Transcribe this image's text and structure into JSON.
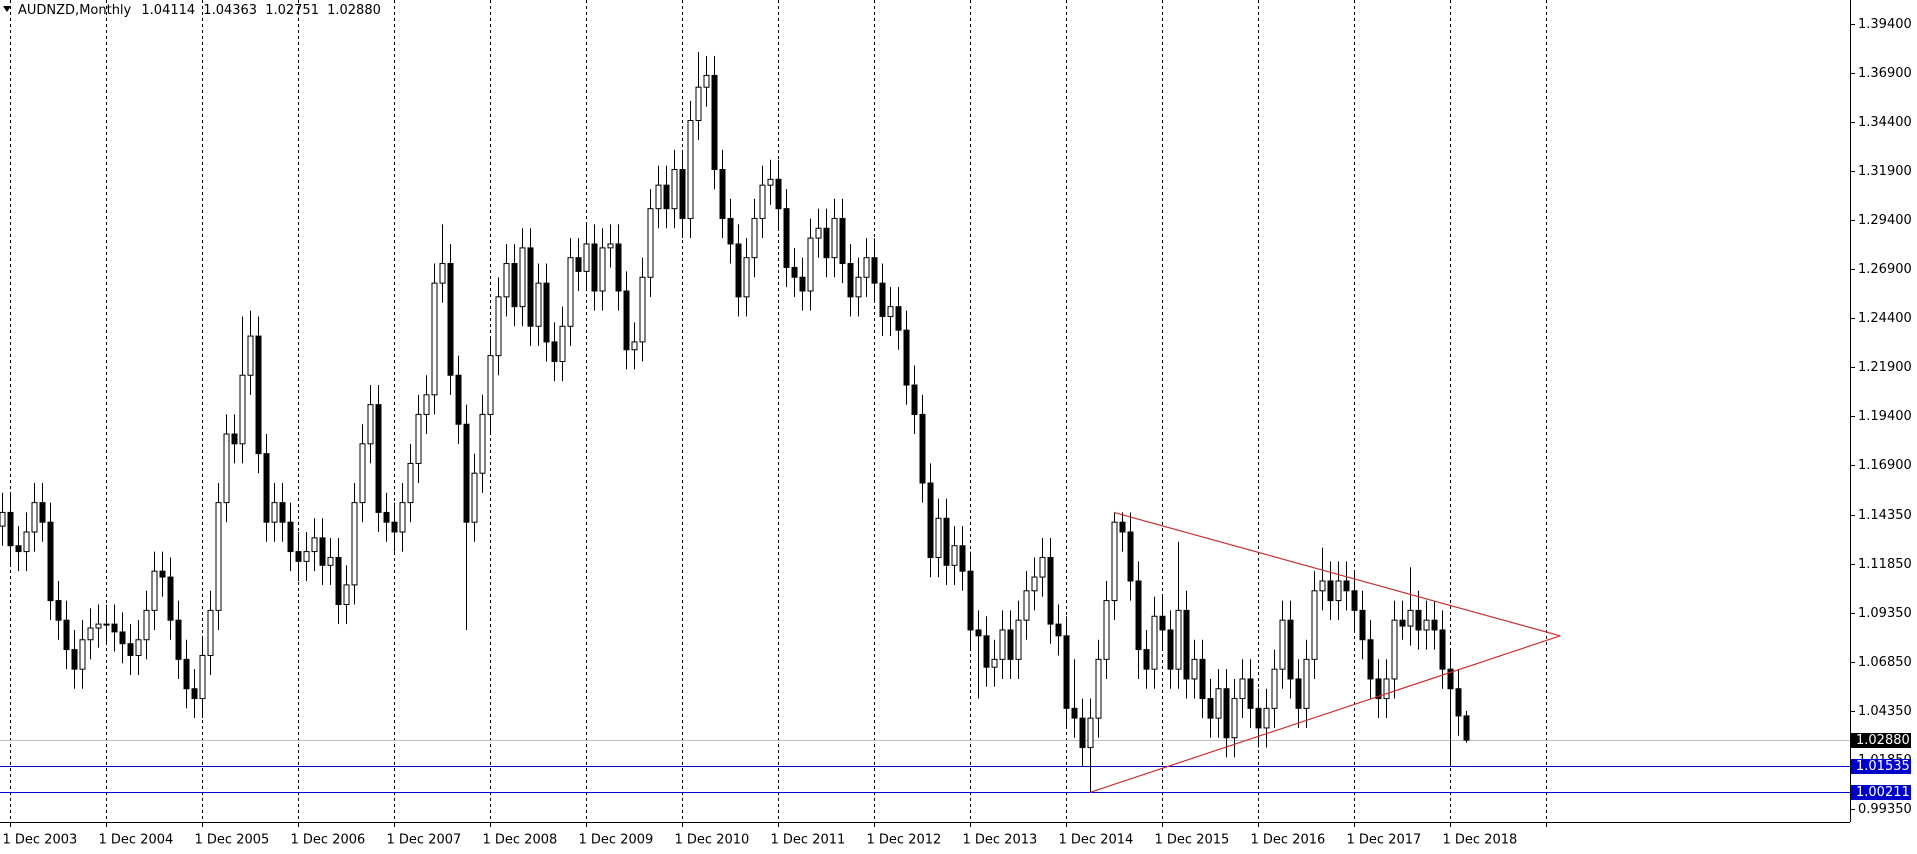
{
  "chart_data": {
    "type": "candlestick",
    "symbol": "AUDNZD,Monthly",
    "ohlc_header": [
      "1.04114",
      "1.04363",
      "1.02751",
      "1.02880"
    ],
    "bull_fill": "#ffffff",
    "bear_fill": "#000000",
    "candle_stroke": "#000000",
    "grid": true,
    "xlim": [
      "2003-10-25",
      "2023-02-01"
    ],
    "xticks": [
      {
        "value": "2003-12-01",
        "label": "1 Dec 2003"
      },
      {
        "value": "2004-12-01",
        "label": "1 Dec 2004"
      },
      {
        "value": "2005-12-01",
        "label": "1 Dec 2005"
      },
      {
        "value": "2006-12-01",
        "label": "1 Dec 2006"
      },
      {
        "value": "2007-12-01",
        "label": "1 Dec 2007"
      },
      {
        "value": "2008-12-01",
        "label": "1 Dec 2008"
      },
      {
        "value": "2009-12-01",
        "label": "1 Dec 2009"
      },
      {
        "value": "2010-12-01",
        "label": "1 Dec 2010"
      },
      {
        "value": "2011-12-01",
        "label": "1 Dec 2011"
      },
      {
        "value": "2012-12-01",
        "label": "1 Dec 2012"
      },
      {
        "value": "2013-12-01",
        "label": "1 Dec 2013"
      },
      {
        "value": "2014-12-01",
        "label": "1 Dec 2014"
      },
      {
        "value": "2015-12-01",
        "label": "1 Dec 2015"
      },
      {
        "value": "2016-12-01",
        "label": "1 Dec 2016"
      },
      {
        "value": "2017-12-01",
        "label": "1 Dec 2017"
      },
      {
        "value": "2018-12-01",
        "label": "1 Dec 2018"
      },
      {
        "value": "2019-12-01",
        "label": null
      }
    ],
    "ylim": [
      0.987,
      1.4065
    ],
    "yticks": [
      {
        "value": 1.394,
        "label": "1.39400"
      },
      {
        "value": 1.369,
        "label": "1.36900"
      },
      {
        "value": 1.344,
        "label": "1.34400"
      },
      {
        "value": 1.319,
        "label": "1.31900"
      },
      {
        "value": 1.294,
        "label": "1.29400"
      },
      {
        "value": 1.269,
        "label": "1.26900"
      },
      {
        "value": 1.244,
        "label": "1.24400"
      },
      {
        "value": 1.219,
        "label": "1.21900"
      },
      {
        "value": 1.194,
        "label": "1.19400"
      },
      {
        "value": 1.169,
        "label": "1.16900"
      },
      {
        "value": 1.1435,
        "label": "1.14350"
      },
      {
        "value": 1.1185,
        "label": "1.11850"
      },
      {
        "value": 1.0935,
        "label": "1.09350"
      },
      {
        "value": 1.0685,
        "label": "1.06850"
      },
      {
        "value": 1.0435,
        "label": "1.04350"
      },
      {
        "value": 1.0185,
        "label": "1.01850"
      },
      {
        "value": 0.9935,
        "label": "0.99350"
      }
    ],
    "price_levels": [
      {
        "value": 1.0288,
        "label": "1.02880",
        "color": "#c0c0c0",
        "label_bg": "#000000"
      },
      {
        "value": 1.01535,
        "label": "1.01535",
        "color": "#0000cc",
        "label_bg": "#0000cc"
      },
      {
        "value": 1.00211,
        "label": "1.00211",
        "color": "#0000cc",
        "label_bg": "#0000cc"
      }
    ],
    "trendlines": [
      {
        "color": "#c83232",
        "points": [
          [
            "2015-06-01",
            1.145
          ],
          [
            "2020-01-25",
            1.082
          ]
        ]
      },
      {
        "color": "#c83232",
        "points": [
          [
            "2015-03-01",
            1.00211
          ],
          [
            "2020-01-25",
            1.082
          ]
        ]
      }
    ],
    "x": [
      "2003-11-01",
      "2003-12-01",
      "2004-01-01",
      "2004-02-01",
      "2004-03-01",
      "2004-04-01",
      "2004-05-01",
      "2004-06-01",
      "2004-07-01",
      "2004-08-01",
      "2004-09-01",
      "2004-10-01",
      "2004-11-01",
      "2004-12-01",
      "2005-01-01",
      "2005-02-01",
      "2005-03-01",
      "2005-04-01",
      "2005-05-01",
      "2005-06-01",
      "2005-07-01",
      "2005-08-01",
      "2005-09-01",
      "2005-10-01",
      "2005-11-01",
      "2005-12-01",
      "2006-01-01",
      "2006-02-01",
      "2006-03-01",
      "2006-04-01",
      "2006-05-01",
      "2006-06-01",
      "2006-07-01",
      "2006-08-01",
      "2006-09-01",
      "2006-10-01",
      "2006-11-01",
      "2006-12-01",
      "2007-01-01",
      "2007-02-01",
      "2007-03-01",
      "2007-04-01",
      "2007-05-01",
      "2007-06-01",
      "2007-07-01",
      "2007-08-01",
      "2007-09-01",
      "2007-10-01",
      "2007-11-01",
      "2007-12-01",
      "2008-01-01",
      "2008-02-01",
      "2008-03-01",
      "2008-04-01",
      "2008-05-01",
      "2008-06-01",
      "2008-07-01",
      "2008-08-01",
      "2008-09-01",
      "2008-10-01",
      "2008-11-01",
      "2008-12-01",
      "2009-01-01",
      "2009-02-01",
      "2009-03-01",
      "2009-04-01",
      "2009-05-01",
      "2009-06-01",
      "2009-07-01",
      "2009-08-01",
      "2009-09-01",
      "2009-10-01",
      "2009-11-01",
      "2009-12-01",
      "2010-01-01",
      "2010-02-01",
      "2010-03-01",
      "2010-04-01",
      "2010-05-01",
      "2010-06-01",
      "2010-07-01",
      "2010-08-01",
      "2010-09-01",
      "2010-10-01",
      "2010-11-01",
      "2010-12-01",
      "2011-01-01",
      "2011-02-01",
      "2011-03-01",
      "2011-04-01",
      "2011-05-01",
      "2011-06-01",
      "2011-07-01",
      "2011-08-01",
      "2011-09-01",
      "2011-10-01",
      "2011-11-01",
      "2011-12-01",
      "2012-01-01",
      "2012-02-01",
      "2012-03-01",
      "2012-04-01",
      "2012-05-01",
      "2012-06-01",
      "2012-07-01",
      "2012-08-01",
      "2012-09-01",
      "2012-10-01",
      "2012-11-01",
      "2012-12-01",
      "2013-01-01",
      "2013-02-01",
      "2013-03-01",
      "2013-04-01",
      "2013-05-01",
      "2013-06-01",
      "2013-07-01",
      "2013-08-01",
      "2013-09-01",
      "2013-10-01",
      "2013-11-01",
      "2013-12-01",
      "2014-01-01",
      "2014-02-01",
      "2014-03-01",
      "2014-04-01",
      "2014-05-01",
      "2014-06-01",
      "2014-07-01",
      "2014-08-01",
      "2014-09-01",
      "2014-10-01",
      "2014-11-01",
      "2014-12-01",
      "2015-01-01",
      "2015-02-01",
      "2015-03-01",
      "2015-04-01",
      "2015-05-01",
      "2015-06-01",
      "2015-07-01",
      "2015-08-01",
      "2015-09-01",
      "2015-10-01",
      "2015-11-01",
      "2015-12-01",
      "2016-01-01",
      "2016-02-01",
      "2016-03-01",
      "2016-04-01",
      "2016-05-01",
      "2016-06-01",
      "2016-07-01",
      "2016-08-01",
      "2016-09-01",
      "2016-10-01",
      "2016-11-01",
      "2016-12-01",
      "2017-01-01",
      "2017-02-01",
      "2017-03-01",
      "2017-04-01",
      "2017-05-01",
      "2017-06-01",
      "2017-07-01",
      "2017-08-01",
      "2017-09-01",
      "2017-10-01",
      "2017-11-01",
      "2017-12-01",
      "2018-01-01",
      "2018-02-01",
      "2018-03-01",
      "2018-04-01",
      "2018-05-01",
      "2018-06-01",
      "2018-07-01",
      "2018-08-01",
      "2018-09-01",
      "2018-10-01",
      "2018-11-01",
      "2018-12-01",
      "2019-01-01",
      "2019-02-01"
    ],
    "open": [
      1.138,
      1.145,
      1.128,
      1.125,
      1.135,
      1.15,
      1.14,
      1.1,
      1.09,
      1.075,
      1.065,
      1.08,
      1.086,
      1.088,
      1.088,
      1.084,
      1.078,
      1.072,
      1.08,
      1.095,
      1.115,
      1.112,
      1.09,
      1.07,
      1.055,
      1.05,
      1.072,
      1.095,
      1.15,
      1.185,
      1.18,
      1.215,
      1.235,
      1.175,
      1.14,
      1.15,
      1.14,
      1.125,
      1.12,
      1.125,
      1.132,
      1.118,
      1.122,
      1.098,
      1.108,
      1.15,
      1.18,
      1.2,
      1.145,
      1.14,
      1.135,
      1.15,
      1.17,
      1.195,
      1.205,
      1.262,
      1.272,
      1.215,
      1.19,
      1.14,
      1.165,
      1.195,
      1.225,
      1.255,
      1.272,
      1.25,
      1.28,
      1.24,
      1.262,
      1.232,
      1.222,
      1.24,
      1.275,
      1.268,
      1.282,
      1.258,
      1.28,
      1.282,
      1.258,
      1.228,
      1.232,
      1.265,
      1.3,
      1.312,
      1.3,
      1.32,
      1.295,
      1.345,
      1.362,
      1.368,
      1.32,
      1.295,
      1.282,
      1.255,
      1.275,
      1.295,
      1.312,
      1.315,
      1.3,
      1.27,
      1.265,
      1.258,
      1.285,
      1.29,
      1.275,
      1.295,
      1.272,
      1.255,
      1.265,
      1.275,
      1.262,
      1.245,
      1.25,
      1.238,
      1.21,
      1.195,
      1.16,
      1.122,
      1.142,
      1.118,
      1.128,
      1.115,
      1.085,
      1.082,
      1.066,
      1.07,
      1.085,
      1.07,
      1.09,
      1.105,
      1.112,
      1.122,
      1.088,
      1.082,
      1.045,
      1.04,
      1.025,
      1.04,
      1.07,
      1.1,
      1.14,
      1.135,
      1.11,
      1.075,
      1.065,
      1.092,
      1.085,
      1.065,
      1.095,
      1.06,
      1.07,
      1.05,
      1.04,
      1.055,
      1.03,
      1.05,
      1.06,
      1.045,
      1.035,
      1.045,
      1.065,
      1.09,
      1.06,
      1.045,
      1.07,
      1.105,
      1.11,
      1.1,
      1.11,
      1.105,
      1.095,
      1.08,
      1.06,
      1.05,
      1.06,
      1.09,
      1.087,
      1.095,
      1.085,
      1.09,
      1.085,
      1.065,
      1.055,
      1.04114
    ],
    "high": [
      1.155,
      1.155,
      1.138,
      1.145,
      1.16,
      1.16,
      1.15,
      1.11,
      1.1,
      1.085,
      1.09,
      1.096,
      1.098,
      1.098,
      1.098,
      1.094,
      1.088,
      1.09,
      1.105,
      1.125,
      1.125,
      1.122,
      1.1,
      1.08,
      1.065,
      1.082,
      1.105,
      1.16,
      1.195,
      1.195,
      1.245,
      1.248,
      1.245,
      1.185,
      1.16,
      1.16,
      1.15,
      1.135,
      1.135,
      1.142,
      1.142,
      1.132,
      1.132,
      1.118,
      1.16,
      1.19,
      1.21,
      1.21,
      1.155,
      1.15,
      1.16,
      1.18,
      1.205,
      1.215,
      1.272,
      1.292,
      1.282,
      1.225,
      1.2,
      1.175,
      1.205,
      1.235,
      1.265,
      1.282,
      1.282,
      1.29,
      1.29,
      1.272,
      1.272,
      1.242,
      1.25,
      1.285,
      1.285,
      1.292,
      1.292,
      1.29,
      1.292,
      1.292,
      1.268,
      1.242,
      1.275,
      1.31,
      1.322,
      1.322,
      1.33,
      1.33,
      1.355,
      1.38,
      1.378,
      1.378,
      1.33,
      1.305,
      1.292,
      1.285,
      1.305,
      1.322,
      1.325,
      1.325,
      1.31,
      1.28,
      1.275,
      1.295,
      1.3,
      1.3,
      1.305,
      1.305,
      1.282,
      1.275,
      1.285,
      1.285,
      1.272,
      1.26,
      1.26,
      1.248,
      1.22,
      1.205,
      1.17,
      1.152,
      1.152,
      1.138,
      1.138,
      1.125,
      1.095,
      1.092,
      1.08,
      1.095,
      1.095,
      1.1,
      1.115,
      1.122,
      1.132,
      1.132,
      1.098,
      1.092,
      1.07,
      1.05,
      1.05,
      1.08,
      1.11,
      1.145,
      1.145,
      1.145,
      1.12,
      1.085,
      1.102,
      1.102,
      1.095,
      1.13,
      1.105,
      1.08,
      1.08,
      1.06,
      1.065,
      1.065,
      1.06,
      1.07,
      1.07,
      1.055,
      1.055,
      1.075,
      1.1,
      1.1,
      1.07,
      1.08,
      1.115,
      1.127,
      1.12,
      1.12,
      1.12,
      1.115,
      1.105,
      1.09,
      1.07,
      1.07,
      1.1,
      1.1,
      1.117,
      1.105,
      1.1,
      1.1,
      1.095,
      1.075,
      1.065,
      1.04363
    ],
    "low": [
      1.128,
      1.118,
      1.115,
      1.115,
      1.125,
      1.13,
      1.09,
      1.08,
      1.065,
      1.055,
      1.055,
      1.07,
      1.076,
      1.078,
      1.074,
      1.068,
      1.062,
      1.062,
      1.07,
      1.085,
      1.102,
      1.08,
      1.06,
      1.045,
      1.04,
      1.04,
      1.062,
      1.085,
      1.14,
      1.17,
      1.17,
      1.205,
      1.165,
      1.13,
      1.13,
      1.13,
      1.115,
      1.11,
      1.11,
      1.115,
      1.108,
      1.108,
      1.088,
      1.088,
      1.098,
      1.14,
      1.17,
      1.135,
      1.13,
      1.125,
      1.125,
      1.14,
      1.16,
      1.185,
      1.195,
      1.252,
      1.205,
      1.18,
      1.085,
      1.13,
      1.155,
      1.185,
      1.215,
      1.245,
      1.24,
      1.24,
      1.23,
      1.23,
      1.222,
      1.212,
      1.212,
      1.23,
      1.258,
      1.258,
      1.248,
      1.248,
      1.27,
      1.248,
      1.218,
      1.218,
      1.222,
      1.255,
      1.29,
      1.29,
      1.29,
      1.285,
      1.285,
      1.335,
      1.352,
      1.31,
      1.285,
      1.272,
      1.245,
      1.245,
      1.265,
      1.285,
      1.302,
      1.29,
      1.26,
      1.255,
      1.248,
      1.248,
      1.275,
      1.265,
      1.265,
      1.262,
      1.245,
      1.245,
      1.255,
      1.252,
      1.235,
      1.235,
      1.228,
      1.2,
      1.185,
      1.15,
      1.112,
      1.112,
      1.108,
      1.108,
      1.105,
      1.075,
      1.05,
      1.056,
      1.056,
      1.06,
      1.06,
      1.06,
      1.08,
      1.095,
      1.102,
      1.078,
      1.072,
      1.035,
      1.03,
      1.015,
      1.00211,
      1.03,
      1.06,
      1.09,
      1.125,
      1.1,
      1.06,
      1.055,
      1.055,
      1.075,
      1.055,
      1.055,
      1.05,
      1.05,
      1.04,
      1.03,
      1.03,
      1.02,
      1.02,
      1.04,
      1.035,
      1.025,
      1.025,
      1.035,
      1.055,
      1.05,
      1.035,
      1.035,
      1.06,
      1.095,
      1.09,
      1.09,
      1.095,
      1.085,
      1.07,
      1.05,
      1.04,
      1.04,
      1.05,
      1.08,
      1.077,
      1.075,
      1.075,
      1.075,
      1.055,
      1.01535,
      1.031,
      1.02751
    ],
    "close": [
      1.145,
      1.128,
      1.125,
      1.135,
      1.15,
      1.14,
      1.1,
      1.09,
      1.075,
      1.065,
      1.08,
      1.086,
      1.088,
      1.088,
      1.084,
      1.078,
      1.072,
      1.08,
      1.095,
      1.115,
      1.112,
      1.09,
      1.07,
      1.055,
      1.05,
      1.072,
      1.095,
      1.15,
      1.185,
      1.18,
      1.215,
      1.235,
      1.175,
      1.14,
      1.15,
      1.14,
      1.125,
      1.12,
      1.125,
      1.132,
      1.118,
      1.122,
      1.098,
      1.108,
      1.15,
      1.18,
      1.2,
      1.145,
      1.14,
      1.135,
      1.15,
      1.17,
      1.195,
      1.205,
      1.262,
      1.272,
      1.215,
      1.19,
      1.14,
      1.165,
      1.195,
      1.225,
      1.255,
      1.272,
      1.25,
      1.28,
      1.24,
      1.262,
      1.232,
      1.222,
      1.24,
      1.275,
      1.268,
      1.282,
      1.258,
      1.28,
      1.282,
      1.258,
      1.228,
      1.232,
      1.265,
      1.3,
      1.312,
      1.3,
      1.32,
      1.295,
      1.345,
      1.362,
      1.368,
      1.32,
      1.295,
      1.282,
      1.255,
      1.275,
      1.295,
      1.312,
      1.315,
      1.3,
      1.27,
      1.265,
      1.258,
      1.285,
      1.29,
      1.275,
      1.295,
      1.272,
      1.255,
      1.265,
      1.275,
      1.262,
      1.245,
      1.25,
      1.238,
      1.21,
      1.195,
      1.16,
      1.122,
      1.142,
      1.118,
      1.128,
      1.115,
      1.085,
      1.082,
      1.066,
      1.07,
      1.085,
      1.07,
      1.09,
      1.105,
      1.112,
      1.122,
      1.088,
      1.082,
      1.045,
      1.04,
      1.025,
      1.04,
      1.07,
      1.1,
      1.14,
      1.135,
      1.11,
      1.075,
      1.065,
      1.092,
      1.085,
      1.065,
      1.095,
      1.06,
      1.07,
      1.05,
      1.04,
      1.055,
      1.03,
      1.05,
      1.06,
      1.045,
      1.035,
      1.045,
      1.065,
      1.09,
      1.06,
      1.045,
      1.07,
      1.105,
      1.11,
      1.1,
      1.11,
      1.105,
      1.095,
      1.08,
      1.06,
      1.05,
      1.06,
      1.09,
      1.087,
      1.095,
      1.085,
      1.09,
      1.085,
      1.065,
      1.055,
      1.04114,
      1.0288
    ]
  }
}
